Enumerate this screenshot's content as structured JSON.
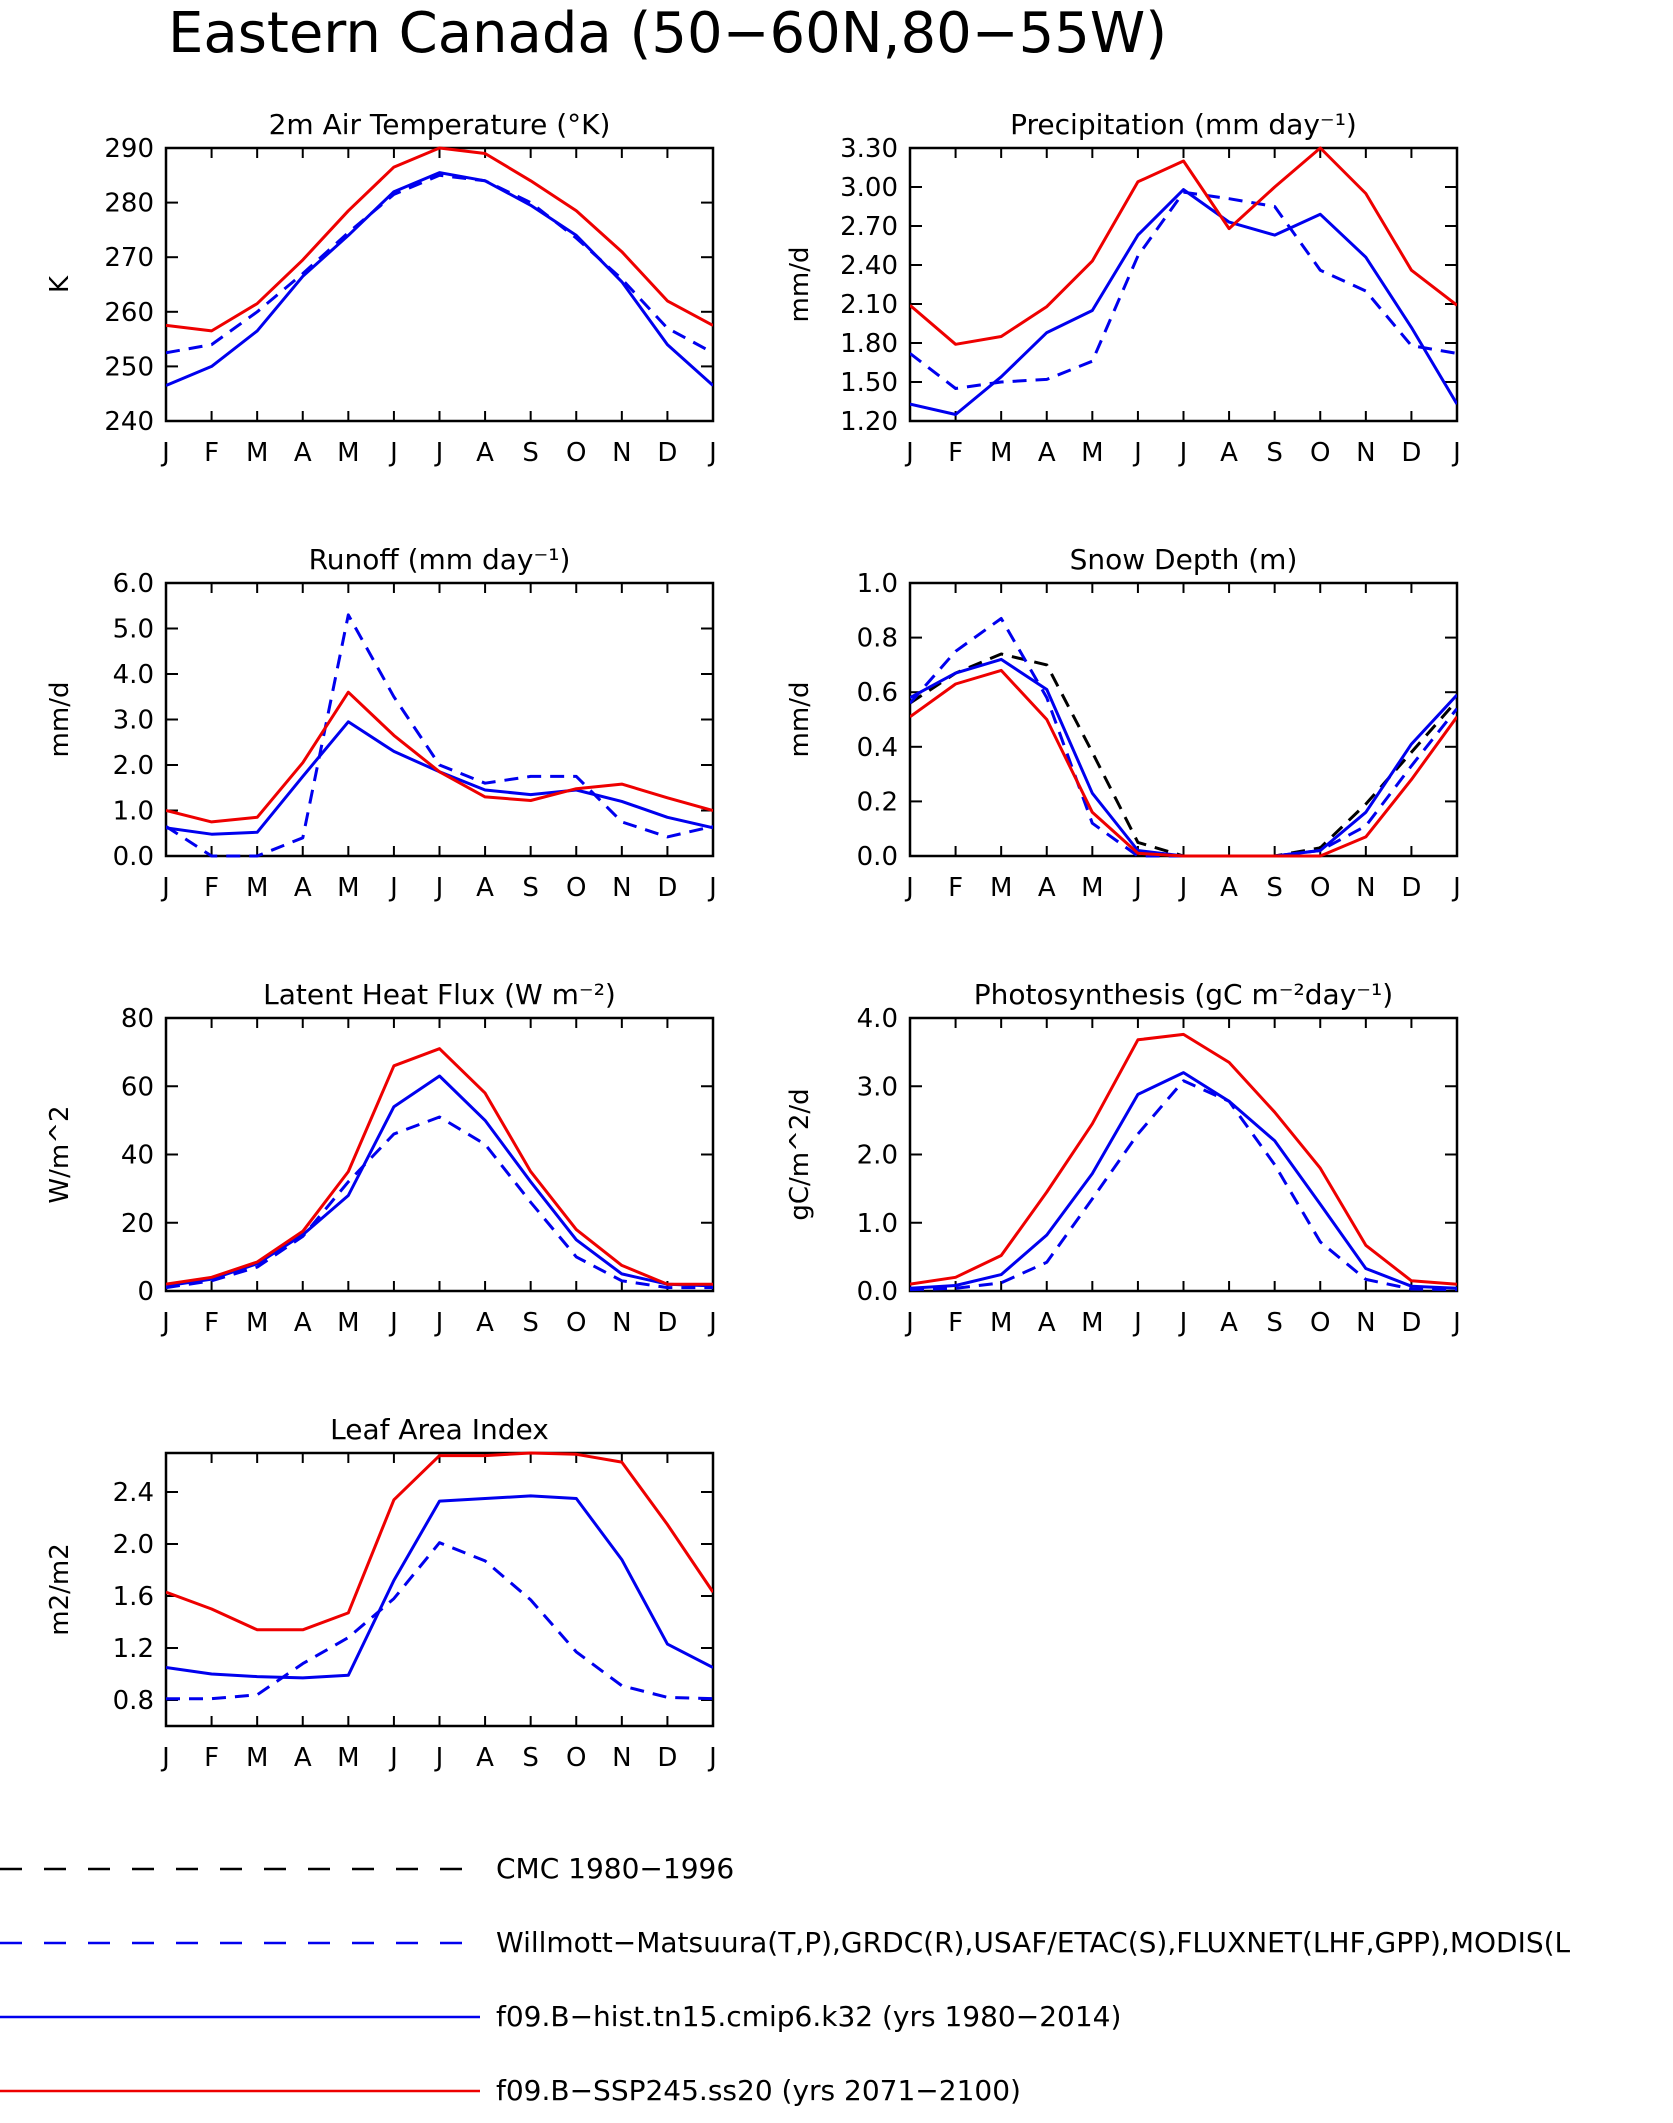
{
  "title": "Eastern Canada (50−60N,80−55W)",
  "colors": {
    "obs_blue": "#0000ee",
    "model_blue": "#0000ee",
    "model_red": "#ee0000",
    "cmc_black": "#000000"
  },
  "chart_data": [
    {
      "type": "line",
      "title": "2m Air Temperature (°K)",
      "ylabel": "K",
      "categories": [
        "J",
        "F",
        "M",
        "A",
        "M",
        "J",
        "J",
        "A",
        "S",
        "O",
        "N",
        "D",
        "J"
      ],
      "ylim": [
        240,
        290
      ],
      "yticks": [
        "240",
        "250",
        "260",
        "270",
        "280",
        "290"
      ],
      "series": [
        {
          "legend": "Willmott−Matsuura(T,P),GRDC(R),USAF/ETAC(S),FLUXNET(LHF,GPP),MODIS(L",
          "style": "dashed",
          "color": "#0000ee",
          "values": [
            252.5,
            254,
            260,
            267,
            274.5,
            281.5,
            285,
            284,
            280,
            273.5,
            266,
            257,
            252.5
          ]
        },
        {
          "legend": "f09.B−hist.tn15.cmip6.k32 (yrs 1980−2014)",
          "style": "solid",
          "color": "#0000ee",
          "values": [
            246.5,
            250,
            256.5,
            266.5,
            274,
            282,
            285.5,
            284,
            279.5,
            274,
            265.5,
            254,
            246.5
          ]
        },
        {
          "legend": "f09.B−SSP245.ss20 (yrs 2071−2100)",
          "style": "solid",
          "color": "#ee0000",
          "values": [
            257.5,
            256.5,
            261.5,
            269.5,
            278.5,
            286.5,
            290,
            289,
            284,
            278.5,
            271,
            262,
            257.5
          ]
        }
      ]
    },
    {
      "type": "line",
      "title": "Precipitation (mm day⁻¹)",
      "ylabel": "mm/d",
      "categories": [
        "J",
        "F",
        "M",
        "A",
        "M",
        "J",
        "J",
        "A",
        "S",
        "O",
        "N",
        "D",
        "J"
      ],
      "ylim": [
        1.2,
        3.3
      ],
      "yticks": [
        "1.20",
        "1.50",
        "1.80",
        "2.10",
        "2.40",
        "2.70",
        "3.00",
        "3.30"
      ],
      "series": [
        {
          "style": "dashed",
          "color": "#0000ee",
          "values": [
            1.72,
            1.45,
            1.5,
            1.52,
            1.66,
            2.47,
            2.96,
            2.91,
            2.85,
            2.36,
            2.2,
            1.78,
            1.72
          ]
        },
        {
          "style": "solid",
          "color": "#0000ee",
          "values": [
            1.33,
            1.25,
            1.54,
            1.88,
            2.05,
            2.63,
            2.98,
            2.73,
            2.63,
            2.79,
            2.46,
            1.92,
            1.33
          ]
        },
        {
          "style": "solid",
          "color": "#ee0000",
          "values": [
            2.09,
            1.79,
            1.85,
            2.08,
            2.43,
            3.04,
            3.2,
            2.68,
            3.0,
            3.3,
            2.95,
            2.36,
            2.09
          ]
        }
      ]
    },
    {
      "type": "line",
      "title": "Runoff (mm day⁻¹)",
      "ylabel": "mm/d",
      "categories": [
        "J",
        "F",
        "M",
        "A",
        "M",
        "J",
        "J",
        "A",
        "S",
        "O",
        "N",
        "D",
        "J"
      ],
      "ylim": [
        0,
        6
      ],
      "yticks": [
        "0.0",
        "1.0",
        "2.0",
        "3.0",
        "4.0",
        "5.0",
        "6.0"
      ],
      "series": [
        {
          "style": "dashed",
          "color": "#0000ee",
          "values": [
            0.65,
            0.0,
            0.0,
            0.4,
            5.3,
            3.5,
            2.0,
            1.6,
            1.75,
            1.75,
            0.75,
            0.42,
            0.65
          ]
        },
        {
          "style": "solid",
          "color": "#0000ee",
          "values": [
            0.62,
            0.48,
            0.52,
            1.75,
            2.95,
            2.3,
            1.85,
            1.45,
            1.35,
            1.45,
            1.2,
            0.85,
            0.62
          ]
        },
        {
          "style": "solid",
          "color": "#ee0000",
          "values": [
            1.0,
            0.75,
            0.85,
            2.05,
            3.6,
            2.65,
            1.85,
            1.3,
            1.22,
            1.48,
            1.58,
            1.28,
            1.0
          ]
        }
      ]
    },
    {
      "type": "line",
      "title": "Snow Depth (m)",
      "ylabel": "mm/d",
      "categories": [
        "J",
        "F",
        "M",
        "A",
        "M",
        "J",
        "J",
        "A",
        "S",
        "O",
        "N",
        "D",
        "J"
      ],
      "ylim": [
        0,
        1
      ],
      "yticks": [
        "0.0",
        "0.2",
        "0.4",
        "0.6",
        "0.8",
        "1.0"
      ],
      "series": [
        {
          "legend": "CMC 1980−1996",
          "style": "dashed",
          "color": "#000000",
          "values": [
            0.56,
            0.67,
            0.74,
            0.7,
            0.38,
            0.05,
            0.0,
            0.0,
            0.0,
            0.03,
            0.19,
            0.38,
            0.57
          ]
        },
        {
          "style": "dashed",
          "color": "#0000ee",
          "values": [
            0.56,
            0.75,
            0.87,
            0.58,
            0.12,
            0.0,
            0.0,
            0.0,
            0.0,
            0.02,
            0.11,
            0.33,
            0.54
          ]
        },
        {
          "style": "solid",
          "color": "#0000ee",
          "values": [
            0.58,
            0.67,
            0.72,
            0.61,
            0.23,
            0.02,
            0.0,
            0.0,
            0.0,
            0.02,
            0.16,
            0.41,
            0.59
          ]
        },
        {
          "style": "solid",
          "color": "#ee0000",
          "values": [
            0.51,
            0.63,
            0.68,
            0.5,
            0.16,
            0.01,
            0.0,
            0.0,
            0.0,
            0.0,
            0.07,
            0.28,
            0.51
          ]
        }
      ]
    },
    {
      "type": "line",
      "title": "Latent Heat Flux (W m⁻²)",
      "ylabel": "W/m^2",
      "categories": [
        "J",
        "F",
        "M",
        "A",
        "M",
        "J",
        "J",
        "A",
        "S",
        "O",
        "N",
        "D",
        "J"
      ],
      "ylim": [
        0,
        80
      ],
      "yticks": [
        "0",
        "20",
        "40",
        "60",
        "80"
      ],
      "series": [
        {
          "style": "dashed",
          "color": "#0000ee",
          "values": [
            1,
            3,
            7,
            16,
            32,
            46,
            51,
            43,
            26,
            10,
            3,
            1,
            1
          ]
        },
        {
          "style": "solid",
          "color": "#0000ee",
          "values": [
            1.5,
            3.5,
            8,
            16.5,
            28,
            54,
            63,
            50,
            32,
            15,
            5,
            2,
            1.5
          ]
        },
        {
          "style": "solid",
          "color": "#ee0000",
          "values": [
            2,
            4,
            8.5,
            17.5,
            35,
            66,
            71,
            58,
            35,
            18,
            7.5,
            2,
            2
          ]
        }
      ]
    },
    {
      "type": "line",
      "title": "Photosynthesis (gC m⁻²day⁻¹)",
      "ylabel": "gC/m^2/d",
      "categories": [
        "J",
        "F",
        "M",
        "A",
        "M",
        "J",
        "J",
        "A",
        "S",
        "O",
        "N",
        "D",
        "J"
      ],
      "ylim": [
        0,
        4
      ],
      "yticks": [
        "0.0",
        "1.0",
        "2.0",
        "3.0",
        "4.0"
      ],
      "series": [
        {
          "style": "dashed",
          "color": "#0000ee",
          "values": [
            0.02,
            0.04,
            0.12,
            0.42,
            1.35,
            2.3,
            3.08,
            2.78,
            1.85,
            0.72,
            0.17,
            0.03,
            0.02
          ]
        },
        {
          "style": "solid",
          "color": "#0000ee",
          "values": [
            0.04,
            0.08,
            0.24,
            0.82,
            1.72,
            2.88,
            3.2,
            2.78,
            2.2,
            1.27,
            0.33,
            0.07,
            0.04
          ]
        },
        {
          "style": "solid",
          "color": "#ee0000",
          "values": [
            0.1,
            0.2,
            0.52,
            1.45,
            2.45,
            3.68,
            3.76,
            3.35,
            2.62,
            1.8,
            0.67,
            0.15,
            0.1
          ]
        }
      ]
    },
    {
      "type": "line",
      "title": "Leaf Area Index",
      "ylabel": "m2/m2",
      "categories": [
        "J",
        "F",
        "M",
        "A",
        "M",
        "J",
        "J",
        "A",
        "S",
        "O",
        "N",
        "D",
        "J"
      ],
      "ylim": [
        0.6,
        2.7
      ],
      "yticks": [
        "0.8",
        "1.2",
        "1.6",
        "2.0",
        "2.4"
      ],
      "series": [
        {
          "style": "dashed",
          "color": "#0000ee",
          "values": [
            0.81,
            0.81,
            0.84,
            1.08,
            1.28,
            1.58,
            2.01,
            1.87,
            1.57,
            1.17,
            0.91,
            0.82,
            0.81
          ]
        },
        {
          "style": "solid",
          "color": "#0000ee",
          "values": [
            1.05,
            1.0,
            0.98,
            0.97,
            0.99,
            1.72,
            2.33,
            2.35,
            2.37,
            2.35,
            1.88,
            1.23,
            1.05
          ]
        },
        {
          "style": "solid",
          "color": "#ee0000",
          "values": [
            1.63,
            1.5,
            1.34,
            1.34,
            1.47,
            2.34,
            2.68,
            2.68,
            2.7,
            2.69,
            2.63,
            2.15,
            1.63
          ]
        }
      ]
    }
  ],
  "legend": [
    {
      "label": "CMC 1980−1996",
      "style": "longdash",
      "color": "#000000"
    },
    {
      "label": "Willmott−Matsuura(T,P),GRDC(R),USAF/ETAC(S),FLUXNET(LHF,GPP),MODIS(L",
      "style": "longdash",
      "color": "#0000ee"
    },
    {
      "label": "f09.B−hist.tn15.cmip6.k32 (yrs 1980−2014)",
      "style": "solid",
      "color": "#0000ee"
    },
    {
      "label": "f09.B−SSP245.ss20 (yrs 2071−2100)",
      "style": "solid",
      "color": "#ee0000"
    }
  ]
}
